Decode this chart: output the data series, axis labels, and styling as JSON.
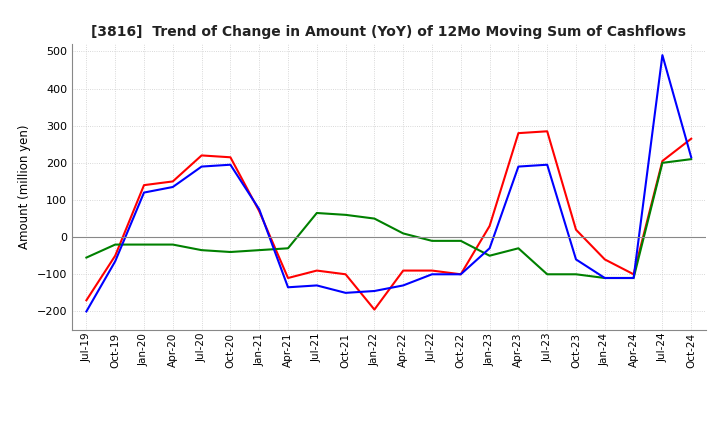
{
  "title": "[3816]  Trend of Change in Amount (YoY) of 12Mo Moving Sum of Cashflows",
  "ylabel": "Amount (million yen)",
  "ylim": [
    -250,
    520
  ],
  "yticks": [
    -200,
    -100,
    0,
    100,
    200,
    300,
    400,
    500
  ],
  "x_labels": [
    "Jul-19",
    "Oct-19",
    "Jan-20",
    "Apr-20",
    "Jul-20",
    "Oct-20",
    "Jan-21",
    "Apr-21",
    "Jul-21",
    "Oct-21",
    "Jan-22",
    "Apr-22",
    "Jul-22",
    "Oct-22",
    "Jan-23",
    "Apr-23",
    "Jul-23",
    "Oct-23",
    "Jan-24",
    "Apr-24",
    "Jul-24",
    "Oct-24"
  ],
  "operating": [
    -170,
    -50,
    140,
    150,
    220,
    215,
    70,
    -110,
    -90,
    -100,
    -195,
    -90,
    -90,
    -100,
    30,
    280,
    285,
    20,
    -60,
    -100,
    205,
    265
  ],
  "investing": [
    -55,
    -20,
    -20,
    -20,
    -35,
    -40,
    -35,
    -30,
    65,
    60,
    50,
    10,
    -10,
    -10,
    -50,
    -30,
    -100,
    -100,
    -110,
    -110,
    200,
    210
  ],
  "free": [
    -200,
    -65,
    120,
    135,
    190,
    195,
    75,
    -135,
    -130,
    -150,
    -145,
    -130,
    -100,
    -100,
    -30,
    190,
    195,
    -60,
    -110,
    -110,
    490,
    215
  ],
  "colors": {
    "operating": "#ff0000",
    "investing": "#008000",
    "free": "#0000ff"
  },
  "background_color": "#ffffff",
  "grid_color": "#cccccc",
  "grid_linestyle": "dotted"
}
